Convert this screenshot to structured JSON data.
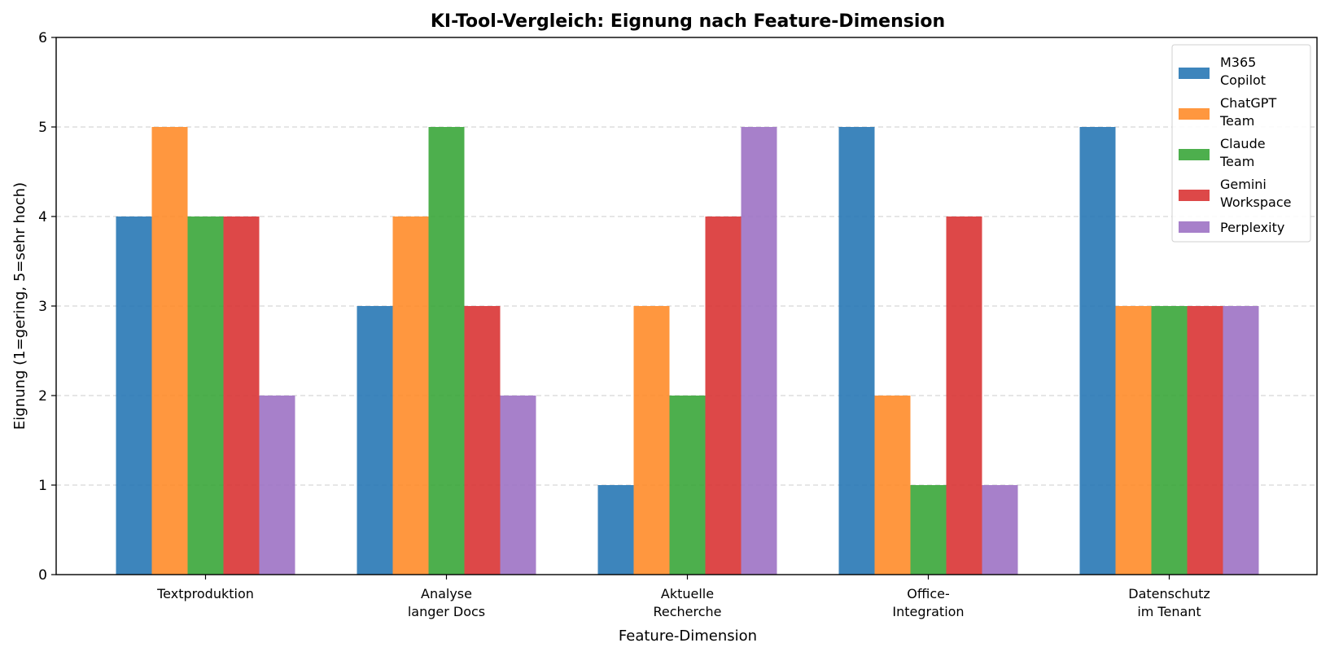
{
  "chart_data": {
    "type": "bar",
    "title": "KI-Tool-Vergleich: Eignung nach Feature-Dimension",
    "xlabel": "Feature-Dimension",
    "ylabel": "Eignung (1=gering, 5=sehr hoch)",
    "ylim": [
      0,
      6
    ],
    "yticks": [
      "0",
      "1",
      "2",
      "3",
      "4",
      "5",
      "6"
    ],
    "grid": "y-dashed",
    "legend_position": "top-right",
    "categories": [
      [
        "Textproduktion"
      ],
      [
        "Analyse",
        "langer Docs"
      ],
      [
        "Aktuelle",
        "Recherche"
      ],
      [
        "Office-",
        "Integration"
      ],
      [
        "Datenschutz",
        "im Tenant"
      ]
    ],
    "series": [
      {
        "name": [
          "M365",
          "Copilot"
        ],
        "color": "#2878b5",
        "values": [
          4,
          3,
          1,
          5,
          5
        ]
      },
      {
        "name": [
          "ChatGPT",
          "Team"
        ],
        "color": "#ff8c2a",
        "values": [
          5,
          4,
          3,
          2,
          3
        ]
      },
      {
        "name": [
          "Claude",
          "Team"
        ],
        "color": "#3aa63a",
        "values": [
          4,
          5,
          2,
          1,
          3
        ]
      },
      {
        "name": [
          "Gemini",
          "Workspace"
        ],
        "color": "#d93434",
        "values": [
          4,
          3,
          4,
          4,
          3
        ]
      },
      {
        "name": [
          "Perplexity"
        ],
        "color": "#9d72c4",
        "values": [
          2,
          2,
          5,
          1,
          3
        ]
      }
    ]
  }
}
